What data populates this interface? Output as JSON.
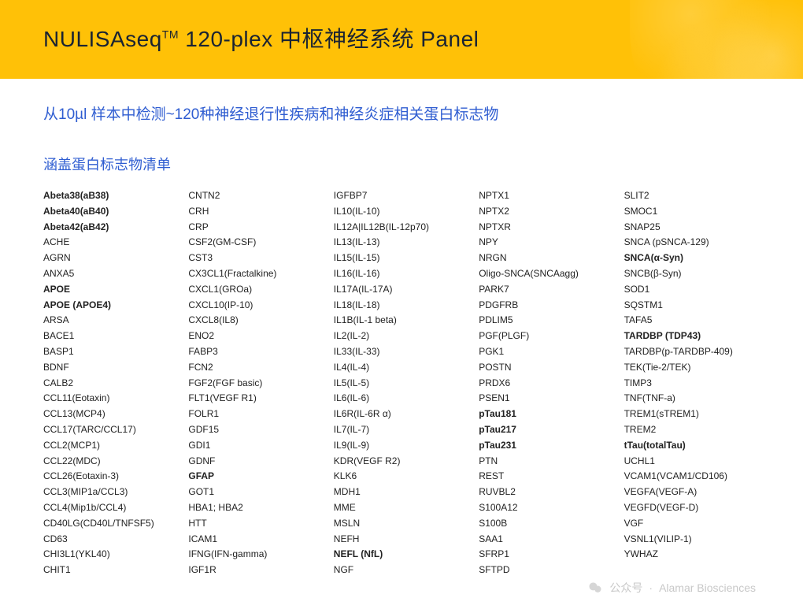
{
  "header": {
    "title_prefix": "NULISAseq",
    "title_tm": "TM",
    "title_suffix": " 120-plex 中枢神经系统 Panel"
  },
  "subtitle": "从10µl 样本中检测~120种神经退行性疾病和神经炎症相关蛋白标志物",
  "section_label": "涵盖蛋白标志物清单",
  "columns": [
    [
      {
        "t": "Abeta38(aB38)",
        "b": true
      },
      {
        "t": "Abeta40(aB40)",
        "b": true
      },
      {
        "t": "Abeta42(aB42)",
        "b": true
      },
      {
        "t": "ACHE"
      },
      {
        "t": "AGRN"
      },
      {
        "t": "ANXA5"
      },
      {
        "t": "APOE",
        "b": true
      },
      {
        "t": "APOE (APOE4)",
        "b": true
      },
      {
        "t": "ARSA"
      },
      {
        "t": "BACE1"
      },
      {
        "t": "BASP1"
      },
      {
        "t": "BDNF"
      },
      {
        "t": "CALB2"
      },
      {
        "t": "CCL11(Eotaxin)"
      },
      {
        "t": "CCL13(MCP4)"
      },
      {
        "t": "CCL17(TARC/CCL17)"
      },
      {
        "t": "CCL2(MCP1)"
      },
      {
        "t": "CCL22(MDC)"
      },
      {
        "t": "CCL26(Eotaxin-3)"
      },
      {
        "t": "CCL3(MIP1a/CCL3)"
      },
      {
        "t": "CCL4(Mip1b/CCL4)"
      },
      {
        "t": "CD40LG(CD40L/TNFSF5)"
      },
      {
        "t": "CD63"
      },
      {
        "t": "CHI3L1(YKL40)"
      },
      {
        "t": "CHIT1"
      }
    ],
    [
      {
        "t": "CNTN2"
      },
      {
        "t": "CRH"
      },
      {
        "t": "CRP"
      },
      {
        "t": "CSF2(GM-CSF)"
      },
      {
        "t": "CST3"
      },
      {
        "t": "CX3CL1(Fractalkine)"
      },
      {
        "t": "CXCL1(GROa)"
      },
      {
        "t": "CXCL10(IP-10)"
      },
      {
        "t": "CXCL8(IL8)"
      },
      {
        "t": "ENO2"
      },
      {
        "t": "FABP3"
      },
      {
        "t": "FCN2"
      },
      {
        "t": "FGF2(FGF basic)"
      },
      {
        "t": "FLT1(VEGF R1)"
      },
      {
        "t": "FOLR1"
      },
      {
        "t": "GDF15"
      },
      {
        "t": "GDI1"
      },
      {
        "t": "GDNF"
      },
      {
        "t": "GFAP",
        "b": true
      },
      {
        "t": "GOT1"
      },
      {
        "t": "HBA1; HBA2"
      },
      {
        "t": "HTT"
      },
      {
        "t": "ICAM1"
      },
      {
        "t": "IFNG(IFN-gamma)"
      },
      {
        "t": "IGF1R"
      }
    ],
    [
      {
        "t": "IGFBP7"
      },
      {
        "t": "IL10(IL-10)"
      },
      {
        "t": "IL12A|IL12B(IL-12p70)"
      },
      {
        "t": "IL13(IL-13)"
      },
      {
        "t": "IL15(IL-15)"
      },
      {
        "t": "IL16(IL-16)"
      },
      {
        "t": "IL17A(IL-17A)"
      },
      {
        "t": "IL18(IL-18)"
      },
      {
        "t": "IL1B(IL-1 beta)"
      },
      {
        "t": "IL2(IL-2)"
      },
      {
        "t": "IL33(IL-33)"
      },
      {
        "t": "IL4(IL-4)"
      },
      {
        "t": "IL5(IL-5)"
      },
      {
        "t": "IL6(IL-6)"
      },
      {
        "t": "IL6R(IL-6R α)"
      },
      {
        "t": "IL7(IL-7)"
      },
      {
        "t": "IL9(IL-9)"
      },
      {
        "t": "KDR(VEGF R2)"
      },
      {
        "t": "KLK6"
      },
      {
        "t": "MDH1"
      },
      {
        "t": "MME"
      },
      {
        "t": "MSLN"
      },
      {
        "t": "NEFH"
      },
      {
        "t": "NEFL (NfL)",
        "b": true
      },
      {
        "t": "NGF"
      }
    ],
    [
      {
        "t": "NPTX1"
      },
      {
        "t": "NPTX2"
      },
      {
        "t": "NPTXR"
      },
      {
        "t": "NPY"
      },
      {
        "t": "NRGN"
      },
      {
        "t": "Oligo-SNCA(SNCAagg)"
      },
      {
        "t": "PARK7"
      },
      {
        "t": "PDGFRB"
      },
      {
        "t": "PDLIM5"
      },
      {
        "t": "PGF(PLGF)"
      },
      {
        "t": "PGK1"
      },
      {
        "t": "POSTN"
      },
      {
        "t": "PRDX6"
      },
      {
        "t": "PSEN1"
      },
      {
        "t": "pTau181",
        "b": true
      },
      {
        "t": "pTau217",
        "b": true
      },
      {
        "t": "pTau231",
        "b": true
      },
      {
        "t": "PTN"
      },
      {
        "t": "REST"
      },
      {
        "t": "RUVBL2"
      },
      {
        "t": "S100A12"
      },
      {
        "t": "S100B"
      },
      {
        "t": "SAA1"
      },
      {
        "t": "SFRP1"
      },
      {
        "t": "SFTPD"
      }
    ],
    [
      {
        "t": "SLIT2"
      },
      {
        "t": "SMOC1"
      },
      {
        "t": "SNAP25"
      },
      {
        "t": "SNCA (pSNCA-129)"
      },
      {
        "t": "SNCA(α-Syn)",
        "b": true
      },
      {
        "t": "SNCB(β-Syn)"
      },
      {
        "t": "SOD1"
      },
      {
        "t": "SQSTM1"
      },
      {
        "t": "TAFA5"
      },
      {
        "t": "TARDBP (TDP43)",
        "b": true
      },
      {
        "t": "TARDBP(p-TARDBP-409)"
      },
      {
        "t": "TEK(Tie-2/TEK)"
      },
      {
        "t": "TIMP3"
      },
      {
        "t": "TNF(TNF-a)"
      },
      {
        "t": "TREM1(sTREM1)"
      },
      {
        "t": "TREM2"
      },
      {
        "t": "tTau(totalTau)",
        "b": true
      },
      {
        "t": "UCHL1"
      },
      {
        "t": "VCAM1(VCAM1/CD106)"
      },
      {
        "t": "VEGFA(VEGF-A)"
      },
      {
        "t": "VEGFD(VEGF-D)"
      },
      {
        "t": "VGF"
      },
      {
        "t": "VSNL1(VILIP-1)"
      },
      {
        "t": "YWHAZ"
      }
    ]
  ],
  "watermark": {
    "label_left": "公众号",
    "label_right": "Alamar Biosciences"
  }
}
